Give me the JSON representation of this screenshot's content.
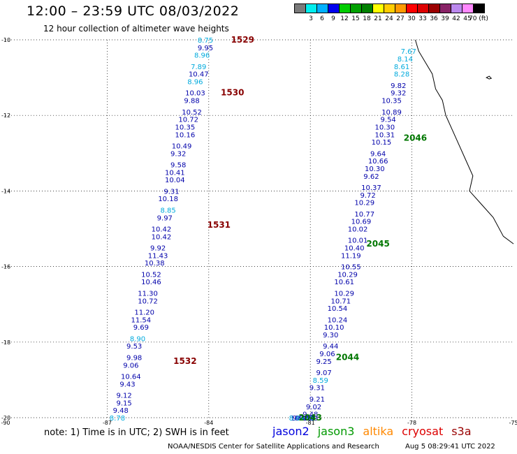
{
  "header": {
    "title": "12:00 – 23:59 UTC 08/03/2022",
    "subtitle": "12 hour collection of altimeter wave heights"
  },
  "legend": {
    "labels": [
      "3",
      "6",
      "9",
      "12",
      "15",
      "18",
      "21",
      "24",
      "27",
      "30",
      "33",
      "36",
      "39",
      "42",
      "45",
      "70 (ft)"
    ],
    "colors": [
      "#7a7a7a",
      "#00eeee",
      "#00b0ff",
      "#0000ee",
      "#00cc00",
      "#00a000",
      "#008000",
      "#ffff00",
      "#ffcc00",
      "#ff9900",
      "#ff0000",
      "#dd0000",
      "#9b0000",
      "#882266",
      "#bb88ee",
      "#ff88ff",
      "#000000"
    ]
  },
  "axes": {
    "x_ticks": [
      "-90",
      "-87",
      "-84",
      "-81",
      "-78",
      "-75"
    ],
    "y_ticks": [
      "-10",
      "-12",
      "-14",
      "-16",
      "-18",
      "-20"
    ]
  },
  "chart_data": {
    "type": "scatter",
    "xlim": [
      -90,
      -75
    ],
    "ylim": [
      -20,
      -10
    ],
    "units": "ft",
    "tracks": [
      {
        "satellite": "jason2",
        "times": [
          {
            "label": "1529",
            "lon": -83.0,
            "lat": -10.0
          },
          {
            "label": "1530",
            "lon": -83.3,
            "lat": -11.4
          },
          {
            "label": "1531",
            "lon": -83.7,
            "lat": -14.9
          },
          {
            "label": "1532",
            "lon": -84.7,
            "lat": -18.5
          }
        ],
        "points": [
          {
            "lon": -84.1,
            "lat": -10.0,
            "v": "8.75"
          },
          {
            "lon": -84.1,
            "lat": -10.2,
            "v": "9.95"
          },
          {
            "lon": -84.2,
            "lat": -10.4,
            "v": "8.96"
          },
          {
            "lon": -84.3,
            "lat": -10.7,
            "v": "7.89"
          },
          {
            "lon": -84.3,
            "lat": -10.9,
            "v": "10.47"
          },
          {
            "lon": -84.4,
            "lat": -11.1,
            "v": "8.96"
          },
          {
            "lon": -84.4,
            "lat": -11.4,
            "v": "10.03"
          },
          {
            "lon": -84.5,
            "lat": -11.6,
            "v": "9.88"
          },
          {
            "lon": -84.5,
            "lat": -11.9,
            "v": "10.52"
          },
          {
            "lon": -84.6,
            "lat": -12.1,
            "v": "10.72"
          },
          {
            "lon": -84.7,
            "lat": -12.3,
            "v": "10.35"
          },
          {
            "lon": -84.7,
            "lat": -12.5,
            "v": "10.16"
          },
          {
            "lon": -84.8,
            "lat": -12.8,
            "v": "10.49"
          },
          {
            "lon": -84.9,
            "lat": -13.0,
            "v": "9.32"
          },
          {
            "lon": -84.9,
            "lat": -13.3,
            "v": "9.58"
          },
          {
            "lon": -85.0,
            "lat": -13.5,
            "v": "10.41"
          },
          {
            "lon": -85.0,
            "lat": -13.7,
            "v": "10.04"
          },
          {
            "lon": -85.1,
            "lat": -14.0,
            "v": "9.31"
          },
          {
            "lon": -85.2,
            "lat": -14.2,
            "v": "10.18"
          },
          {
            "lon": -85.2,
            "lat": -14.5,
            "v": "8.85"
          },
          {
            "lon": -85.3,
            "lat": -14.7,
            "v": "9.97"
          },
          {
            "lon": -85.4,
            "lat": -15.0,
            "v": "10.42"
          },
          {
            "lon": -85.4,
            "lat": -15.2,
            "v": "10.42"
          },
          {
            "lon": -85.5,
            "lat": -15.5,
            "v": "9.92"
          },
          {
            "lon": -85.5,
            "lat": -15.7,
            "v": "11.43"
          },
          {
            "lon": -85.6,
            "lat": -15.9,
            "v": "10.38"
          },
          {
            "lon": -85.7,
            "lat": -16.2,
            "v": "10.52"
          },
          {
            "lon": -85.7,
            "lat": -16.4,
            "v": "10.46"
          },
          {
            "lon": -85.8,
            "lat": -16.7,
            "v": "11.30"
          },
          {
            "lon": -85.8,
            "lat": -16.9,
            "v": "10.72"
          },
          {
            "lon": -85.9,
            "lat": -17.2,
            "v": "11.20"
          },
          {
            "lon": -86.0,
            "lat": -17.4,
            "v": "11.54"
          },
          {
            "lon": -86.0,
            "lat": -17.6,
            "v": "9.69"
          },
          {
            "lon": -86.1,
            "lat": -17.9,
            "v": "8.90"
          },
          {
            "lon": -86.2,
            "lat": -18.1,
            "v": "9.53"
          },
          {
            "lon": -86.2,
            "lat": -18.4,
            "v": "9.98"
          },
          {
            "lon": -86.3,
            "lat": -18.6,
            "v": "9.06"
          },
          {
            "lon": -86.3,
            "lat": -18.9,
            "v": "10.64"
          },
          {
            "lon": -86.4,
            "lat": -19.1,
            "v": "9.43"
          },
          {
            "lon": -86.5,
            "lat": -19.4,
            "v": "9.12"
          },
          {
            "lon": -86.5,
            "lat": -19.6,
            "v": "9.15"
          },
          {
            "lon": -86.6,
            "lat": -19.8,
            "v": "9.48"
          },
          {
            "lon": -86.7,
            "lat": -20.0,
            "v": "8.78"
          }
        ]
      },
      {
        "satellite": "jason3",
        "times": [
          {
            "label": "2043",
            "lon": -81.0,
            "lat": -20.0
          },
          {
            "label": "2044",
            "lon": -79.9,
            "lat": -18.4
          },
          {
            "label": "2045",
            "lon": -79.0,
            "lat": -15.4
          },
          {
            "label": "2046",
            "lon": -77.9,
            "lat": -12.6
          }
        ],
        "points": [
          {
            "lon": -78.1,
            "lat": -10.3,
            "v": "7.67"
          },
          {
            "lon": -78.2,
            "lat": -10.5,
            "v": "8.14"
          },
          {
            "lon": -78.3,
            "lat": -10.7,
            "v": "8.61"
          },
          {
            "lon": -78.3,
            "lat": -10.9,
            "v": "8.28"
          },
          {
            "lon": -78.4,
            "lat": -11.2,
            "v": "9.82"
          },
          {
            "lon": -78.4,
            "lat": -11.4,
            "v": "9.32"
          },
          {
            "lon": -78.6,
            "lat": -11.6,
            "v": "10.35"
          },
          {
            "lon": -78.6,
            "lat": -11.9,
            "v": "10.89"
          },
          {
            "lon": -78.7,
            "lat": -12.1,
            "v": "9.54"
          },
          {
            "lon": -78.8,
            "lat": -12.3,
            "v": "10.30"
          },
          {
            "lon": -78.8,
            "lat": -12.5,
            "v": "10.31"
          },
          {
            "lon": -78.9,
            "lat": -12.7,
            "v": "10.15"
          },
          {
            "lon": -79.0,
            "lat": -13.0,
            "v": "9.64"
          },
          {
            "lon": -79.0,
            "lat": -13.2,
            "v": "10.66"
          },
          {
            "lon": -79.1,
            "lat": -13.4,
            "v": "10.30"
          },
          {
            "lon": -79.2,
            "lat": -13.6,
            "v": "9.62"
          },
          {
            "lon": -79.2,
            "lat": -13.9,
            "v": "10.37"
          },
          {
            "lon": -79.3,
            "lat": -14.1,
            "v": "9.72"
          },
          {
            "lon": -79.4,
            "lat": -14.3,
            "v": "10.29"
          },
          {
            "lon": -79.4,
            "lat": -14.6,
            "v": "10.77"
          },
          {
            "lon": -79.5,
            "lat": -14.8,
            "v": "10.69"
          },
          {
            "lon": -79.6,
            "lat": -15.0,
            "v": "10.02"
          },
          {
            "lon": -79.6,
            "lat": -15.3,
            "v": "10.01"
          },
          {
            "lon": -79.7,
            "lat": -15.5,
            "v": "10.40"
          },
          {
            "lon": -79.8,
            "lat": -15.7,
            "v": "11.19"
          },
          {
            "lon": -79.8,
            "lat": -16.0,
            "v": "10.55"
          },
          {
            "lon": -79.9,
            "lat": -16.2,
            "v": "10.29"
          },
          {
            "lon": -80.0,
            "lat": -16.4,
            "v": "10.61"
          },
          {
            "lon": -80.0,
            "lat": -16.7,
            "v": "10.29"
          },
          {
            "lon": -80.1,
            "lat": -16.9,
            "v": "10.71"
          },
          {
            "lon": -80.2,
            "lat": -17.1,
            "v": "10.54"
          },
          {
            "lon": -80.2,
            "lat": -17.4,
            "v": "10.24"
          },
          {
            "lon": -80.3,
            "lat": -17.6,
            "v": "10.10"
          },
          {
            "lon": -80.4,
            "lat": -17.8,
            "v": "9.30"
          },
          {
            "lon": -80.4,
            "lat": -18.1,
            "v": "9.44"
          },
          {
            "lon": -80.5,
            "lat": -18.3,
            "v": "9.06"
          },
          {
            "lon": -80.6,
            "lat": -18.5,
            "v": "9.25"
          },
          {
            "lon": -80.6,
            "lat": -18.8,
            "v": "9.07"
          },
          {
            "lon": -80.7,
            "lat": -19.0,
            "v": "8.59"
          },
          {
            "lon": -80.8,
            "lat": -19.2,
            "v": "9.31"
          },
          {
            "lon": -80.8,
            "lat": -19.5,
            "v": "9.21"
          },
          {
            "lon": -80.9,
            "lat": -19.7,
            "v": "9.02"
          },
          {
            "lon": -81.0,
            "lat": -19.9,
            "v": "9.48"
          },
          {
            "lon": -81.0,
            "lat": -20.0,
            "v": "9.39"
          },
          {
            "lon": -81.1,
            "lat": -20.0,
            "v": "8.88"
          },
          {
            "lon": -81.1,
            "lat": -20.0,
            "v": "9.74"
          },
          {
            "lon": -81.2,
            "lat": -20.0,
            "v": "9.18"
          },
          {
            "lon": -81.3,
            "lat": -20.0,
            "v": "10.17"
          },
          {
            "lon": -81.3,
            "lat": -20.0,
            "v": "9.22"
          },
          {
            "lon": -81.4,
            "lat": -20.0,
            "v": "8.64"
          }
        ]
      }
    ]
  },
  "footer": {
    "note": "note:  1) Time is in UTC; 2) SWH is in feet",
    "sat_jason2": "jason2",
    "sat_jason3": "jason3",
    "sat_altika": "altika",
    "sat_cryosat": "cryosat",
    "sat_s3a": "s3a",
    "credit": "NOAA/NESDIS Center for Satellite Applications and Research",
    "timestamp": "Aug  5 08:29:41 UTC 2022"
  },
  "colors": {
    "sat_jason2": "#0000dd",
    "sat_jason3": "#009900",
    "sat_altika": "#ff8800",
    "sat_cryosat": "#dd0000",
    "sat_s3a": "#990000",
    "time_jason2": "#880000",
    "time_jason3": "#007700",
    "value_dark": "#0000aa",
    "value_light": "#00aadd",
    "coast": "#000000"
  }
}
